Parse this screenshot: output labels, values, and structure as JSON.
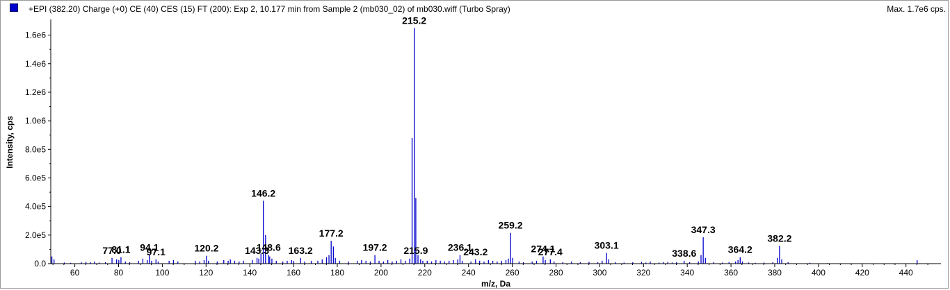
{
  "header": {
    "title": "+EPI (382.20) Charge (+0) CE (40) CES (15) FT (200): Exp 2, 10.177 min from Sample 2 (mb030_02) of mb030.wiff (Turbo Spray)",
    "max_label": "Max. 1.7e6 cps."
  },
  "colors": {
    "series": "#0000cc",
    "axis": "#000000",
    "background": "#ffffff"
  },
  "chart_data": {
    "type": "bar",
    "title": "",
    "xlabel": "m/z, Da",
    "ylabel": "Intensity, cps",
    "xlim": [
      49,
      456
    ],
    "ylim": [
      0,
      1700000
    ],
    "grid": false,
    "xticks": [
      60,
      80,
      100,
      120,
      140,
      160,
      180,
      200,
      220,
      240,
      260,
      280,
      300,
      320,
      340,
      360,
      380,
      400,
      420,
      440
    ],
    "yticks": [
      {
        "value": 0,
        "label": "0.0"
      },
      {
        "value": 200000,
        "label": "2.0e5"
      },
      {
        "value": 400000,
        "label": "4.0e5"
      },
      {
        "value": 600000,
        "label": "6.0e5"
      },
      {
        "value": 800000,
        "label": "8.0e5"
      },
      {
        "value": 1000000,
        "label": "1.0e6"
      },
      {
        "value": 1200000,
        "label": "1.2e6"
      },
      {
        "value": 1400000,
        "label": "1.4e6"
      },
      {
        "value": 1600000,
        "label": "1.6e6"
      }
    ],
    "peak_labels": [
      {
        "label": "77.0",
        "mz": 77.0,
        "y": 40000
      },
      {
        "label": "81.1",
        "mz": 81.1,
        "y": 45000
      },
      {
        "label": "94.1",
        "mz": 94.1,
        "y": 60000
      },
      {
        "label": "97.1",
        "mz": 97.1,
        "y": 30000
      },
      {
        "label": "120.2",
        "mz": 120.2,
        "y": 55000
      },
      {
        "label": "143.3",
        "mz": 143.3,
        "y": 40000
      },
      {
        "label": "146.2",
        "mz": 146.2,
        "y": 440000
      },
      {
        "label": "148.6",
        "mz": 148.6,
        "y": 60000
      },
      {
        "label": "163.2",
        "mz": 163.2,
        "y": 40000
      },
      {
        "label": "177.2",
        "mz": 177.2,
        "y": 160000
      },
      {
        "label": "197.2",
        "mz": 197.2,
        "y": 60000
      },
      {
        "label": "215.2",
        "mz": 215.2,
        "y": 1650000
      },
      {
        "label": "215.9",
        "mz": 215.9,
        "y": 40000
      },
      {
        "label": "236.1",
        "mz": 236.1,
        "y": 60000
      },
      {
        "label": "243.2",
        "mz": 243.2,
        "y": 30000
      },
      {
        "label": "259.2",
        "mz": 259.2,
        "y": 215000
      },
      {
        "label": "274.1",
        "mz": 274.1,
        "y": 50000
      },
      {
        "label": "277.4",
        "mz": 277.4,
        "y": 30000
      },
      {
        "label": "303.1",
        "mz": 303.1,
        "y": 75000
      },
      {
        "label": "338.6",
        "mz": 338.6,
        "y": 20000
      },
      {
        "label": "347.3",
        "mz": 347.3,
        "y": 185000
      },
      {
        "label": "364.2",
        "mz": 364.2,
        "y": 45000
      },
      {
        "label": "382.2",
        "mz": 382.2,
        "y": 125000
      }
    ],
    "peaks": [
      [
        49.5,
        50000
      ],
      [
        50.5,
        30000
      ],
      [
        55.2,
        8000
      ],
      [
        58.1,
        6000
      ],
      [
        63.0,
        9000
      ],
      [
        65.1,
        12000
      ],
      [
        67.1,
        10000
      ],
      [
        69.0,
        15000
      ],
      [
        71.1,
        8000
      ],
      [
        74.0,
        10000
      ],
      [
        77.0,
        40000
      ],
      [
        79.1,
        30000
      ],
      [
        80.1,
        25000
      ],
      [
        81.1,
        45000
      ],
      [
        83.1,
        15000
      ],
      [
        85.1,
        10000
      ],
      [
        89.1,
        20000
      ],
      [
        91.1,
        35000
      ],
      [
        93.1,
        25000
      ],
      [
        94.1,
        60000
      ],
      [
        95.1,
        20000
      ],
      [
        97.1,
        30000
      ],
      [
        98.1,
        15000
      ],
      [
        103.1,
        20000
      ],
      [
        105.1,
        25000
      ],
      [
        107.1,
        15000
      ],
      [
        115.1,
        20000
      ],
      [
        117.1,
        15000
      ],
      [
        119.1,
        25000
      ],
      [
        120.2,
        55000
      ],
      [
        121.1,
        20000
      ],
      [
        125.1,
        15000
      ],
      [
        128.1,
        25000
      ],
      [
        130.1,
        20000
      ],
      [
        131.1,
        30000
      ],
      [
        133.1,
        20000
      ],
      [
        135.1,
        15000
      ],
      [
        137.1,
        20000
      ],
      [
        141.1,
        25000
      ],
      [
        143.3,
        40000
      ],
      [
        144.1,
        35000
      ],
      [
        145.1,
        70000
      ],
      [
        146.2,
        440000
      ],
      [
        147.2,
        200000
      ],
      [
        148.6,
        60000
      ],
      [
        149.1,
        50000
      ],
      [
        150.1,
        35000
      ],
      [
        152.1,
        20000
      ],
      [
        155.1,
        15000
      ],
      [
        157.1,
        20000
      ],
      [
        159.1,
        25000
      ],
      [
        160.1,
        20000
      ],
      [
        163.2,
        40000
      ],
      [
        165.1,
        15000
      ],
      [
        168.1,
        20000
      ],
      [
        171.1,
        20000
      ],
      [
        173.1,
        30000
      ],
      [
        175.1,
        45000
      ],
      [
        176.2,
        60000
      ],
      [
        177.2,
        160000
      ],
      [
        178.2,
        120000
      ],
      [
        179.1,
        40000
      ],
      [
        181.1,
        20000
      ],
      [
        185.1,
        15000
      ],
      [
        189.1,
        20000
      ],
      [
        191.1,
        25000
      ],
      [
        193.1,
        20000
      ],
      [
        195.1,
        15000
      ],
      [
        197.2,
        60000
      ],
      [
        199.1,
        20000
      ],
      [
        201.1,
        15000
      ],
      [
        203.1,
        25000
      ],
      [
        205.1,
        15000
      ],
      [
        207.1,
        20000
      ],
      [
        209.1,
        30000
      ],
      [
        211.1,
        20000
      ],
      [
        213.1,
        35000
      ],
      [
        214.2,
        880000
      ],
      [
        215.2,
        1650000
      ],
      [
        215.9,
        460000
      ],
      [
        216.9,
        60000
      ],
      [
        218.1,
        30000
      ],
      [
        219.1,
        20000
      ],
      [
        221.1,
        20000
      ],
      [
        223.1,
        15000
      ],
      [
        225.1,
        25000
      ],
      [
        227.1,
        20000
      ],
      [
        229.1,
        15000
      ],
      [
        231.1,
        20000
      ],
      [
        233.1,
        25000
      ],
      [
        235.1,
        30000
      ],
      [
        236.1,
        60000
      ],
      [
        237.1,
        20000
      ],
      [
        241.1,
        15000
      ],
      [
        243.2,
        30000
      ],
      [
        245.1,
        20000
      ],
      [
        247.1,
        15000
      ],
      [
        249.1,
        25000
      ],
      [
        251.1,
        20000
      ],
      [
        253.1,
        15000
      ],
      [
        255.1,
        20000
      ],
      [
        257.1,
        25000
      ],
      [
        258.2,
        35000
      ],
      [
        259.2,
        215000
      ],
      [
        260.2,
        40000
      ],
      [
        263.1,
        15000
      ],
      [
        265.1,
        10000
      ],
      [
        269.1,
        15000
      ],
      [
        271.1,
        20000
      ],
      [
        274.1,
        50000
      ],
      [
        275.1,
        25000
      ],
      [
        277.4,
        30000
      ],
      [
        279.1,
        15000
      ],
      [
        283.1,
        10000
      ],
      [
        287.1,
        15000
      ],
      [
        291.1,
        10000
      ],
      [
        295.1,
        12000
      ],
      [
        299.1,
        10000
      ],
      [
        301.1,
        20000
      ],
      [
        303.1,
        75000
      ],
      [
        304.1,
        30000
      ],
      [
        307.1,
        10000
      ],
      [
        311.1,
        8000
      ],
      [
        315.1,
        10000
      ],
      [
        319.1,
        12000
      ],
      [
        321.1,
        8000
      ],
      [
        323.1,
        15000
      ],
      [
        327.1,
        8000
      ],
      [
        329.1,
        10000
      ],
      [
        331.1,
        12000
      ],
      [
        333.1,
        8000
      ],
      [
        335.1,
        10000
      ],
      [
        338.6,
        20000
      ],
      [
        341.1,
        10000
      ],
      [
        345.1,
        15000
      ],
      [
        346.3,
        60000
      ],
      [
        347.3,
        185000
      ],
      [
        348.3,
        40000
      ],
      [
        352.1,
        10000
      ],
      [
        356.1,
        8000
      ],
      [
        359.1,
        10000
      ],
      [
        362.1,
        15000
      ],
      [
        363.2,
        25000
      ],
      [
        364.2,
        45000
      ],
      [
        365.2,
        15000
      ],
      [
        368.1,
        8000
      ],
      [
        371.1,
        6000
      ],
      [
        375.1,
        8000
      ],
      [
        379.1,
        10000
      ],
      [
        381.2,
        40000
      ],
      [
        382.2,
        125000
      ],
      [
        383.2,
        30000
      ],
      [
        386.1,
        10000
      ],
      [
        396.1,
        6000
      ],
      [
        404.1,
        4000
      ],
      [
        445.1,
        25000
      ]
    ]
  }
}
